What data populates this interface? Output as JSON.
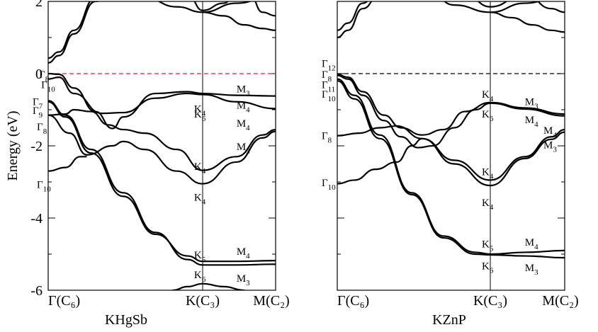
{
  "chart_data": [
    {
      "type": "line",
      "title": "KHgSb",
      "ylabel": "Energy (eV)",
      "ylim": [
        -6,
        2
      ],
      "yticks": [
        2,
        0,
        -2,
        -4,
        -6
      ],
      "kpoints": [
        {
          "label": "Γ",
          "sub": "C₆"
        },
        {
          "label": "K",
          "sub": "C₃"
        },
        {
          "label": "M",
          "sub": "C₂"
        }
      ],
      "fermi_level": 0,
      "fermi_color": "#dd2222",
      "bands": [
        [
          [
            0,
            0.43
          ],
          [
            0.05,
            0.6
          ],
          [
            0.12,
            1.2
          ],
          [
            0.22,
            2.1
          ],
          [
            0.3,
            2.2
          ]
        ],
        [
          [
            0,
            0.3
          ],
          [
            0.05,
            0.5
          ],
          [
            0.12,
            1.1
          ],
          [
            0.22,
            2.0
          ],
          [
            0.3,
            2.2
          ]
        ],
        [
          [
            0.45,
            2.1
          ],
          [
            0.6,
            1.85
          ],
          [
            0.72,
            1.7
          ],
          [
            0.85,
            1.95
          ],
          [
            1,
            2.2
          ]
        ],
        [
          [
            0.72,
            1.7
          ],
          [
            0.8,
            1.6
          ],
          [
            0.88,
            1.35
          ],
          [
            0.95,
            1.25
          ],
          [
            1,
            1.2
          ]
        ],
        [
          [
            0.65,
            2.2
          ],
          [
            0.72,
            1.75
          ],
          [
            0.8,
            1.95
          ],
          [
            0.85,
            2.2
          ]
        ],
        [
          [
            0.9,
            2.2
          ],
          [
            0.95,
            1.7
          ],
          [
            1,
            1.6
          ]
        ],
        [
          [
            0,
            0.0
          ],
          [
            0.05,
            -0.02
          ],
          [
            0.12,
            -0.4
          ],
          [
            0.22,
            -1.05
          ],
          [
            0.3,
            -1.52
          ],
          [
            0.35,
            -1.2
          ],
          [
            0.5,
            -0.55
          ],
          [
            0.65,
            -0.5
          ],
          [
            0.72,
            -0.55
          ],
          [
            0.85,
            -0.6
          ],
          [
            1,
            -0.62
          ]
        ],
        [
          [
            0,
            -0.15
          ],
          [
            0.05,
            -0.1
          ],
          [
            0.12,
            -0.55
          ],
          [
            0.25,
            -1.1
          ],
          [
            0.35,
            -1.08
          ],
          [
            0.5,
            -0.68
          ],
          [
            0.65,
            -0.55
          ],
          [
            0.72,
            -0.58
          ],
          [
            0.85,
            -0.78
          ],
          [
            1,
            -0.97
          ]
        ],
        [
          [
            0,
            -1.15
          ],
          [
            0.08,
            -1.12
          ],
          [
            0.12,
            -1.0
          ],
          [
            0.2,
            -1.05
          ],
          [
            0.28,
            -1.42
          ],
          [
            0.35,
            -1.55
          ],
          [
            0.45,
            -1.65
          ],
          [
            0.6,
            -2.1
          ],
          [
            0.72,
            -2.68
          ],
          [
            0.85,
            -2.3
          ],
          [
            0.95,
            -1.7
          ],
          [
            1,
            -1.55
          ]
        ],
        [
          [
            0,
            -1.15
          ],
          [
            0.1,
            -1.65
          ],
          [
            0.18,
            -2.25
          ],
          [
            0.3,
            -2.0
          ],
          [
            0.35,
            -1.88
          ],
          [
            0.45,
            -2.1
          ],
          [
            0.6,
            -2.7
          ],
          [
            0.72,
            -3.05
          ],
          [
            0.85,
            -2.45
          ],
          [
            0.95,
            -1.78
          ],
          [
            1,
            -1.6
          ]
        ],
        [
          [
            0,
            -0.78
          ],
          [
            0.08,
            -1.2
          ],
          [
            0.2,
            -2.2
          ],
          [
            0.35,
            -3.4
          ],
          [
            0.5,
            -4.45
          ],
          [
            0.65,
            -5.05
          ],
          [
            0.72,
            -5.2
          ],
          [
            0.85,
            -5.2
          ],
          [
            1,
            -5.18
          ]
        ],
        [
          [
            0,
            -0.75
          ],
          [
            0.08,
            -1.15
          ],
          [
            0.2,
            -2.1
          ],
          [
            0.35,
            -3.3
          ],
          [
            0.5,
            -4.4
          ],
          [
            0.65,
            -5.15
          ],
          [
            0.72,
            -5.3
          ],
          [
            0.85,
            -5.3
          ],
          [
            1,
            -5.28
          ]
        ],
        [
          [
            0,
            -2.7
          ],
          [
            0.08,
            -2.6
          ],
          [
            0.15,
            -2.3
          ],
          [
            0.18,
            -2.3
          ]
        ],
        [
          [
            0.58,
            -6.0
          ],
          [
            0.65,
            -5.9
          ],
          [
            0.72,
            -5.82
          ],
          [
            0.8,
            -5.9
          ],
          [
            0.88,
            -6.0
          ]
        ]
      ],
      "labels": [
        {
          "t": "Γ",
          "s": "8",
          "x": 0.03,
          "e": 0.0
        },
        {
          "t": "Γ",
          "s": "7",
          "x": 0.0,
          "e": -0.75
        },
        {
          "t": "Γ",
          "s": "10",
          "x": 0.04,
          "e": -0.28
        },
        {
          "t": "Γ",
          "s": "9",
          "x": 0.0,
          "e": -1.0
        },
        {
          "t": "Γ",
          "s": "8",
          "x": 0.02,
          "e": -1.45
        },
        {
          "t": "Γ",
          "s": "10",
          "x": 0.02,
          "e": -3.05
        },
        {
          "t": "K",
          "s": "4",
          "x": 0.68,
          "e": -0.95
        },
        {
          "t": "K",
          "s": "6",
          "x": 0.68,
          "e": -1.1
        },
        {
          "t": "K",
          "s": "4",
          "x": 0.68,
          "e": -2.55
        },
        {
          "t": "K",
          "s": "4",
          "x": 0.68,
          "e": -3.4
        },
        {
          "t": "K",
          "s": "5",
          "x": 0.68,
          "e": -5.0
        },
        {
          "t": "K",
          "s": "6",
          "x": 0.68,
          "e": -5.55
        },
        {
          "t": "M",
          "s": "3",
          "x": 0.85,
          "e": -0.4
        },
        {
          "t": "M",
          "s": "4",
          "x": 0.85,
          "e": -0.85
        },
        {
          "t": "M",
          "s": "4",
          "x": 0.85,
          "e": -1.35
        },
        {
          "t": "M",
          "s": "3",
          "x": 0.85,
          "e": -2.0
        },
        {
          "t": "M",
          "s": "4",
          "x": 0.85,
          "e": -4.9
        },
        {
          "t": "M",
          "s": "3",
          "x": 0.85,
          "e": -5.65
        }
      ]
    },
    {
      "type": "line",
      "title": "KZnP",
      "ylim": [
        -6,
        2
      ],
      "kpoints": [
        {
          "label": "Γ",
          "sub": "C₆"
        },
        {
          "label": "K",
          "sub": "C₃"
        },
        {
          "label": "M",
          "sub": "C₂"
        }
      ],
      "fermi_level": 0,
      "fermi_color": "#000000",
      "bands": [
        [
          [
            0,
            1.0
          ],
          [
            0.05,
            1.2
          ],
          [
            0.12,
            1.8
          ],
          [
            0.2,
            2.2
          ]
        ],
        [
          [
            0,
            1.2
          ],
          [
            0.05,
            1.4
          ],
          [
            0.12,
            1.95
          ],
          [
            0.18,
            2.2
          ]
        ],
        [
          [
            0.45,
            2.15
          ],
          [
            0.55,
            1.9
          ],
          [
            0.72,
            1.7
          ],
          [
            0.85,
            1.95
          ],
          [
            1,
            2.2
          ]
        ],
        [
          [
            0.72,
            1.7
          ],
          [
            0.8,
            1.55
          ],
          [
            0.88,
            1.35
          ],
          [
            0.95,
            1.2
          ],
          [
            1,
            1.15
          ]
        ],
        [
          [
            0.6,
            2.2
          ],
          [
            0.72,
            1.85
          ],
          [
            0.85,
            2.2
          ]
        ],
        [
          [
            0.85,
            2.2
          ],
          [
            0.95,
            1.8
          ],
          [
            1,
            1.7
          ]
        ],
        [
          [
            0,
            -0.02
          ],
          [
            0.05,
            -0.1
          ],
          [
            0.12,
            -0.5
          ],
          [
            0.22,
            -1.15
          ],
          [
            0.3,
            -1.5
          ],
          [
            0.4,
            -1.7
          ],
          [
            0.5,
            -1.55
          ],
          [
            0.6,
            -1.05
          ],
          [
            0.72,
            -0.8
          ],
          [
            0.85,
            -0.95
          ],
          [
            1,
            -1.12
          ]
        ],
        [
          [
            0,
            -0.05
          ],
          [
            0.05,
            -0.15
          ],
          [
            0.12,
            -0.6
          ],
          [
            0.22,
            -1.3
          ],
          [
            0.3,
            -1.75
          ],
          [
            0.38,
            -2.05
          ],
          [
            0.45,
            -2.0
          ],
          [
            0.55,
            -1.5
          ],
          [
            0.65,
            -1.0
          ],
          [
            0.72,
            -0.82
          ],
          [
            0.85,
            -0.98
          ],
          [
            1,
            -1.17
          ]
        ],
        [
          [
            0,
            -1.72
          ],
          [
            0.1,
            -1.65
          ],
          [
            0.2,
            -1.5
          ],
          [
            0.28,
            -1.45
          ],
          [
            0.4,
            -1.8
          ],
          [
            0.55,
            -2.4
          ],
          [
            0.72,
            -2.95
          ],
          [
            0.85,
            -2.3
          ],
          [
            0.95,
            -1.75
          ],
          [
            1,
            -1.55
          ]
        ],
        [
          [
            0,
            -3.05
          ],
          [
            0.08,
            -2.95
          ],
          [
            0.18,
            -2.65
          ],
          [
            0.28,
            -2.45
          ],
          [
            0.35,
            -2.0
          ],
          [
            0.4,
            -1.8
          ],
          [
            0.55,
            -2.5
          ],
          [
            0.72,
            -3.1
          ],
          [
            0.85,
            -2.35
          ],
          [
            0.95,
            -1.82
          ],
          [
            1,
            -1.62
          ]
        ],
        [
          [
            0,
            -0.15
          ],
          [
            0.08,
            -0.6
          ],
          [
            0.2,
            -1.7
          ],
          [
            0.35,
            -3.3
          ],
          [
            0.5,
            -4.5
          ],
          [
            0.65,
            -4.95
          ],
          [
            0.72,
            -5.0
          ],
          [
            0.85,
            -4.95
          ],
          [
            1,
            -4.9
          ]
        ],
        [
          [
            0,
            -0.2
          ],
          [
            0.08,
            -0.7
          ],
          [
            0.2,
            -1.8
          ],
          [
            0.35,
            -3.35
          ],
          [
            0.5,
            -4.55
          ],
          [
            0.65,
            -5.0
          ],
          [
            0.72,
            -5.02
          ],
          [
            0.85,
            -5.05
          ],
          [
            1,
            -5.1
          ]
        ]
      ],
      "labels": [
        {
          "t": "Γ",
          "s": "12",
          "x": 0.0,
          "e": 0.3
        },
        {
          "t": "Γ",
          "s": "8",
          "x": 0.0,
          "e": 0.0
        },
        {
          "t": "Γ",
          "s": "11",
          "x": 0.0,
          "e": -0.28
        },
        {
          "t": "Γ",
          "s": "10",
          "x": 0.0,
          "e": -0.55
        },
        {
          "t": "Γ",
          "s": "8",
          "x": 0.0,
          "e": -1.7
        },
        {
          "t": "Γ",
          "s": "10",
          "x": 0.0,
          "e": -3.0
        },
        {
          "t": "K",
          "s": "4",
          "x": 0.68,
          "e": -0.55
        },
        {
          "t": "K",
          "s": "6",
          "x": 0.68,
          "e": -1.1
        },
        {
          "t": "K",
          "s": "4",
          "x": 0.68,
          "e": -2.7
        },
        {
          "t": "K",
          "s": "4",
          "x": 0.68,
          "e": -3.55
        },
        {
          "t": "K",
          "s": "5",
          "x": 0.68,
          "e": -4.7
        },
        {
          "t": "K",
          "s": "6",
          "x": 0.68,
          "e": -5.3
        },
        {
          "t": "M",
          "s": "3",
          "x": 0.85,
          "e": -0.75
        },
        {
          "t": "M",
          "s": "4",
          "x": 0.85,
          "e": -1.25
        },
        {
          "t": "M",
          "s": "4",
          "x": 0.92,
          "e": -1.55
        },
        {
          "t": "M",
          "s": "3",
          "x": 0.92,
          "e": -1.95
        },
        {
          "t": "M",
          "s": "4",
          "x": 0.85,
          "e": -4.65
        },
        {
          "t": "M",
          "s": "3",
          "x": 0.85,
          "e": -5.35
        }
      ]
    }
  ]
}
